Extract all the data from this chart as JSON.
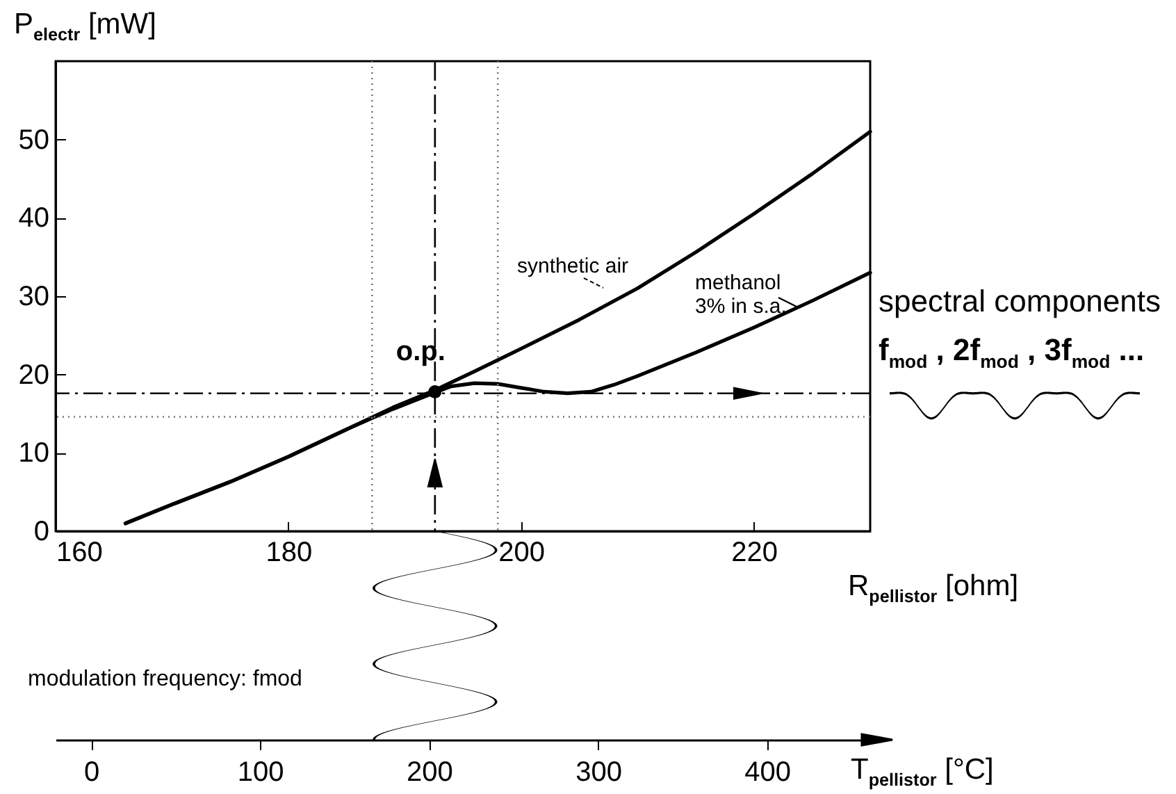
{
  "chart_data": {
    "type": "line",
    "xlabel": "R$_{pellistor}$  [ohm]",
    "ylabel": "P$_{electr}$    [mW]",
    "x2label": "T$_{pellistor}$  [°C]",
    "xlim": [
      160,
      230
    ],
    "xticks": [
      160,
      180,
      200,
      220
    ],
    "ylim": [
      0,
      60
    ],
    "yticks": [
      0,
      10,
      20,
      30,
      40,
      50
    ],
    "x2lim": [
      -21,
      461
    ],
    "x2ticks": [
      0,
      100,
      200,
      300,
      400
    ],
    "series": [
      {
        "name": "synthetic air",
        "color": "#000000",
        "x": [
          166,
          170,
          175,
          180,
          185,
          189,
          192.6,
          196,
          200,
          205,
          210,
          215,
          220,
          225,
          230
        ],
        "values": [
          1,
          3.4,
          6.3,
          9.5,
          13,
          15.8,
          18,
          20.4,
          23.3,
          27,
          31,
          35.6,
          40.5,
          45.6,
          51
        ]
      },
      {
        "name": "methanol 3% in s.a.",
        "color": "#000000",
        "x": [
          166,
          170,
          175,
          180,
          185,
          189,
          192.6,
          194,
          196,
          198,
          200,
          202,
          204,
          206,
          208,
          210,
          215,
          220,
          225,
          230
        ],
        "values": [
          1,
          3.4,
          6.3,
          9.5,
          13,
          15.6,
          17.7,
          18.5,
          18.9,
          18.8,
          18.3,
          17.8,
          17.6,
          17.8,
          18.7,
          19.8,
          22.8,
          26,
          29.4,
          33
        ]
      },
      {
        "type": "scatter",
        "color": "#000000",
        "x": [
          192.6
        ],
        "values": [
          17.8
        ],
        "marker": "circle"
      }
    ],
    "ref_lines": [
      {
        "axis": "y",
        "value": 17.6,
        "color": "#000000",
        "line_style": "dashed"
      },
      {
        "axis": "x",
        "value": 192.6,
        "color": "#000000",
        "line_style": "dashed"
      },
      {
        "axis": "y",
        "value": 14.6,
        "color": "#777777",
        "line_style": "dotted"
      },
      {
        "axis": "x",
        "value": 187.2,
        "color": "#777777",
        "line_style": "dotted"
      },
      {
        "axis": "x",
        "value": 198,
        "color": "#777777",
        "line_style": "dotted"
      }
    ],
    "annotations": [
      {
        "text": "o.p.",
        "x": 192.6,
        "y": 17.8
      },
      "spectral components",
      "f$_{mod}$ , 2f$_{mod}$ , 3f$_{mod}$ ...",
      "modulation frequency: fmod"
    ],
    "grid": false
  }
}
